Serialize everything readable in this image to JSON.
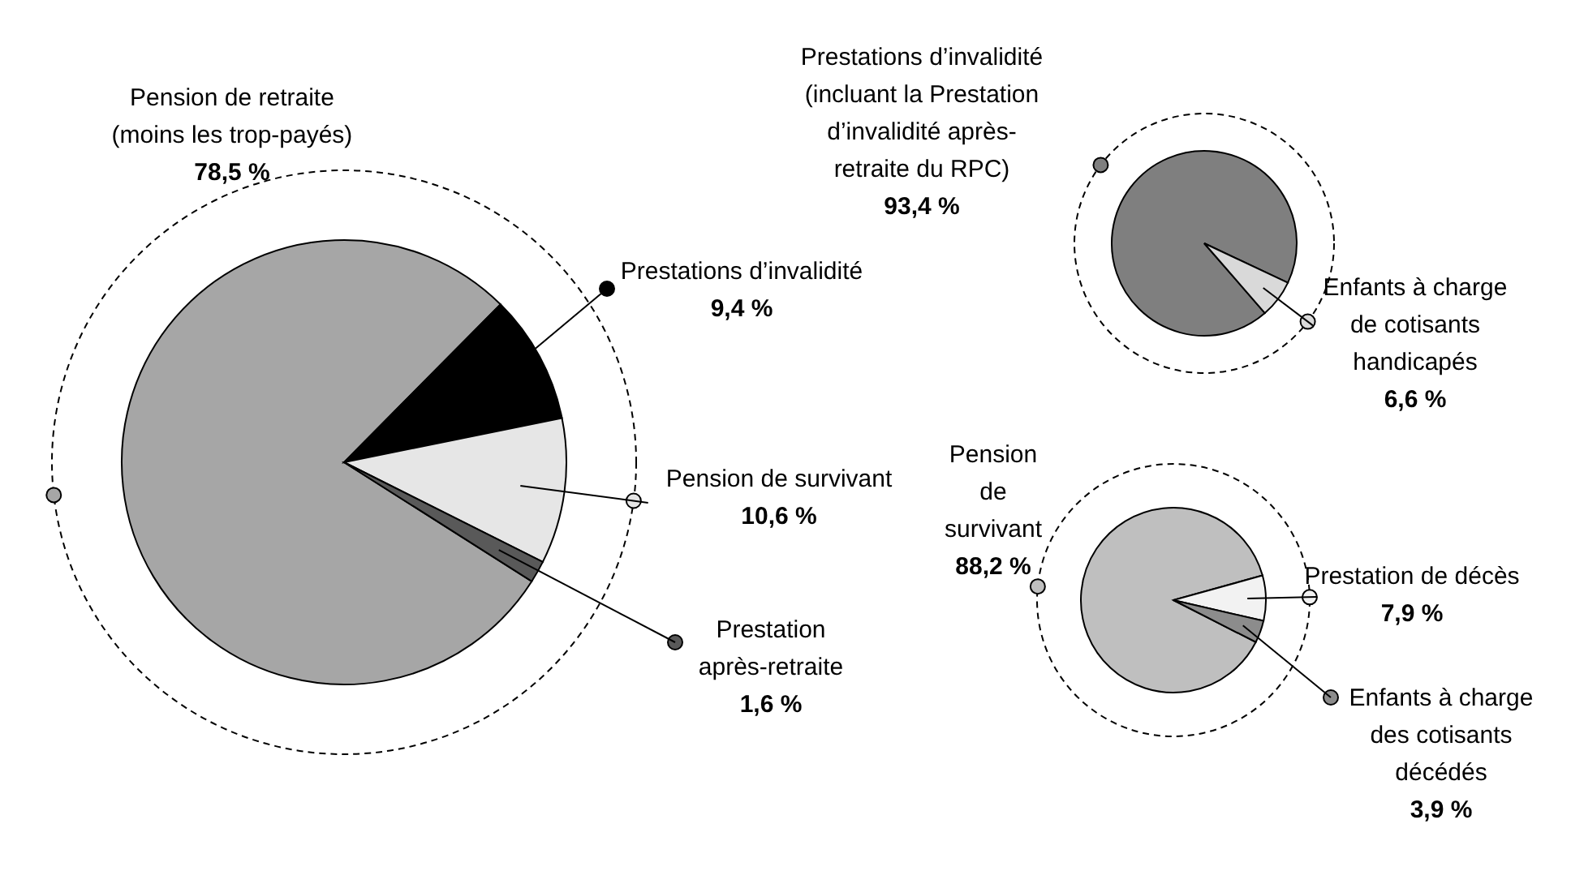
{
  "chart_data": [
    {
      "type": "pie",
      "categories": [
        "Pension de retraite (moins les trop-payés)",
        "Prestations d’invalidité",
        "Pension de survivant",
        "Prestation après-retraite"
      ],
      "values": [
        78.5,
        9.4,
        10.6,
        1.6
      ],
      "value_labels": [
        "78,5 %",
        "9,4 %",
        "10,6 %",
        "1,6 %"
      ],
      "colors": [
        "#a6a6a6",
        "#000000",
        "#e6e6e6",
        "#595959"
      ],
      "legend": "right"
    },
    {
      "type": "pie",
      "categories": [
        "Prestations d’invalidité (incluant la Prestation d’invalidité après-retraite du RPC)",
        "Enfants à charge de cotisants handicapés"
      ],
      "values": [
        93.4,
        6.6
      ],
      "value_labels": [
        "93,4 %",
        "6,6 %"
      ],
      "colors": [
        "#7f7f7f",
        "#d9d9d9"
      ]
    },
    {
      "type": "pie",
      "categories": [
        "Pension de survivant",
        "Prestation de décès",
        "Enfants à charge des cotisants décédés"
      ],
      "values": [
        88.2,
        7.9,
        3.9
      ],
      "value_labels": [
        "88,2 %",
        "7,9 %",
        "3,9 %"
      ],
      "colors": [
        "#bfbfbf",
        "#f2f2f2",
        "#8c8c8c"
      ]
    }
  ]
}
